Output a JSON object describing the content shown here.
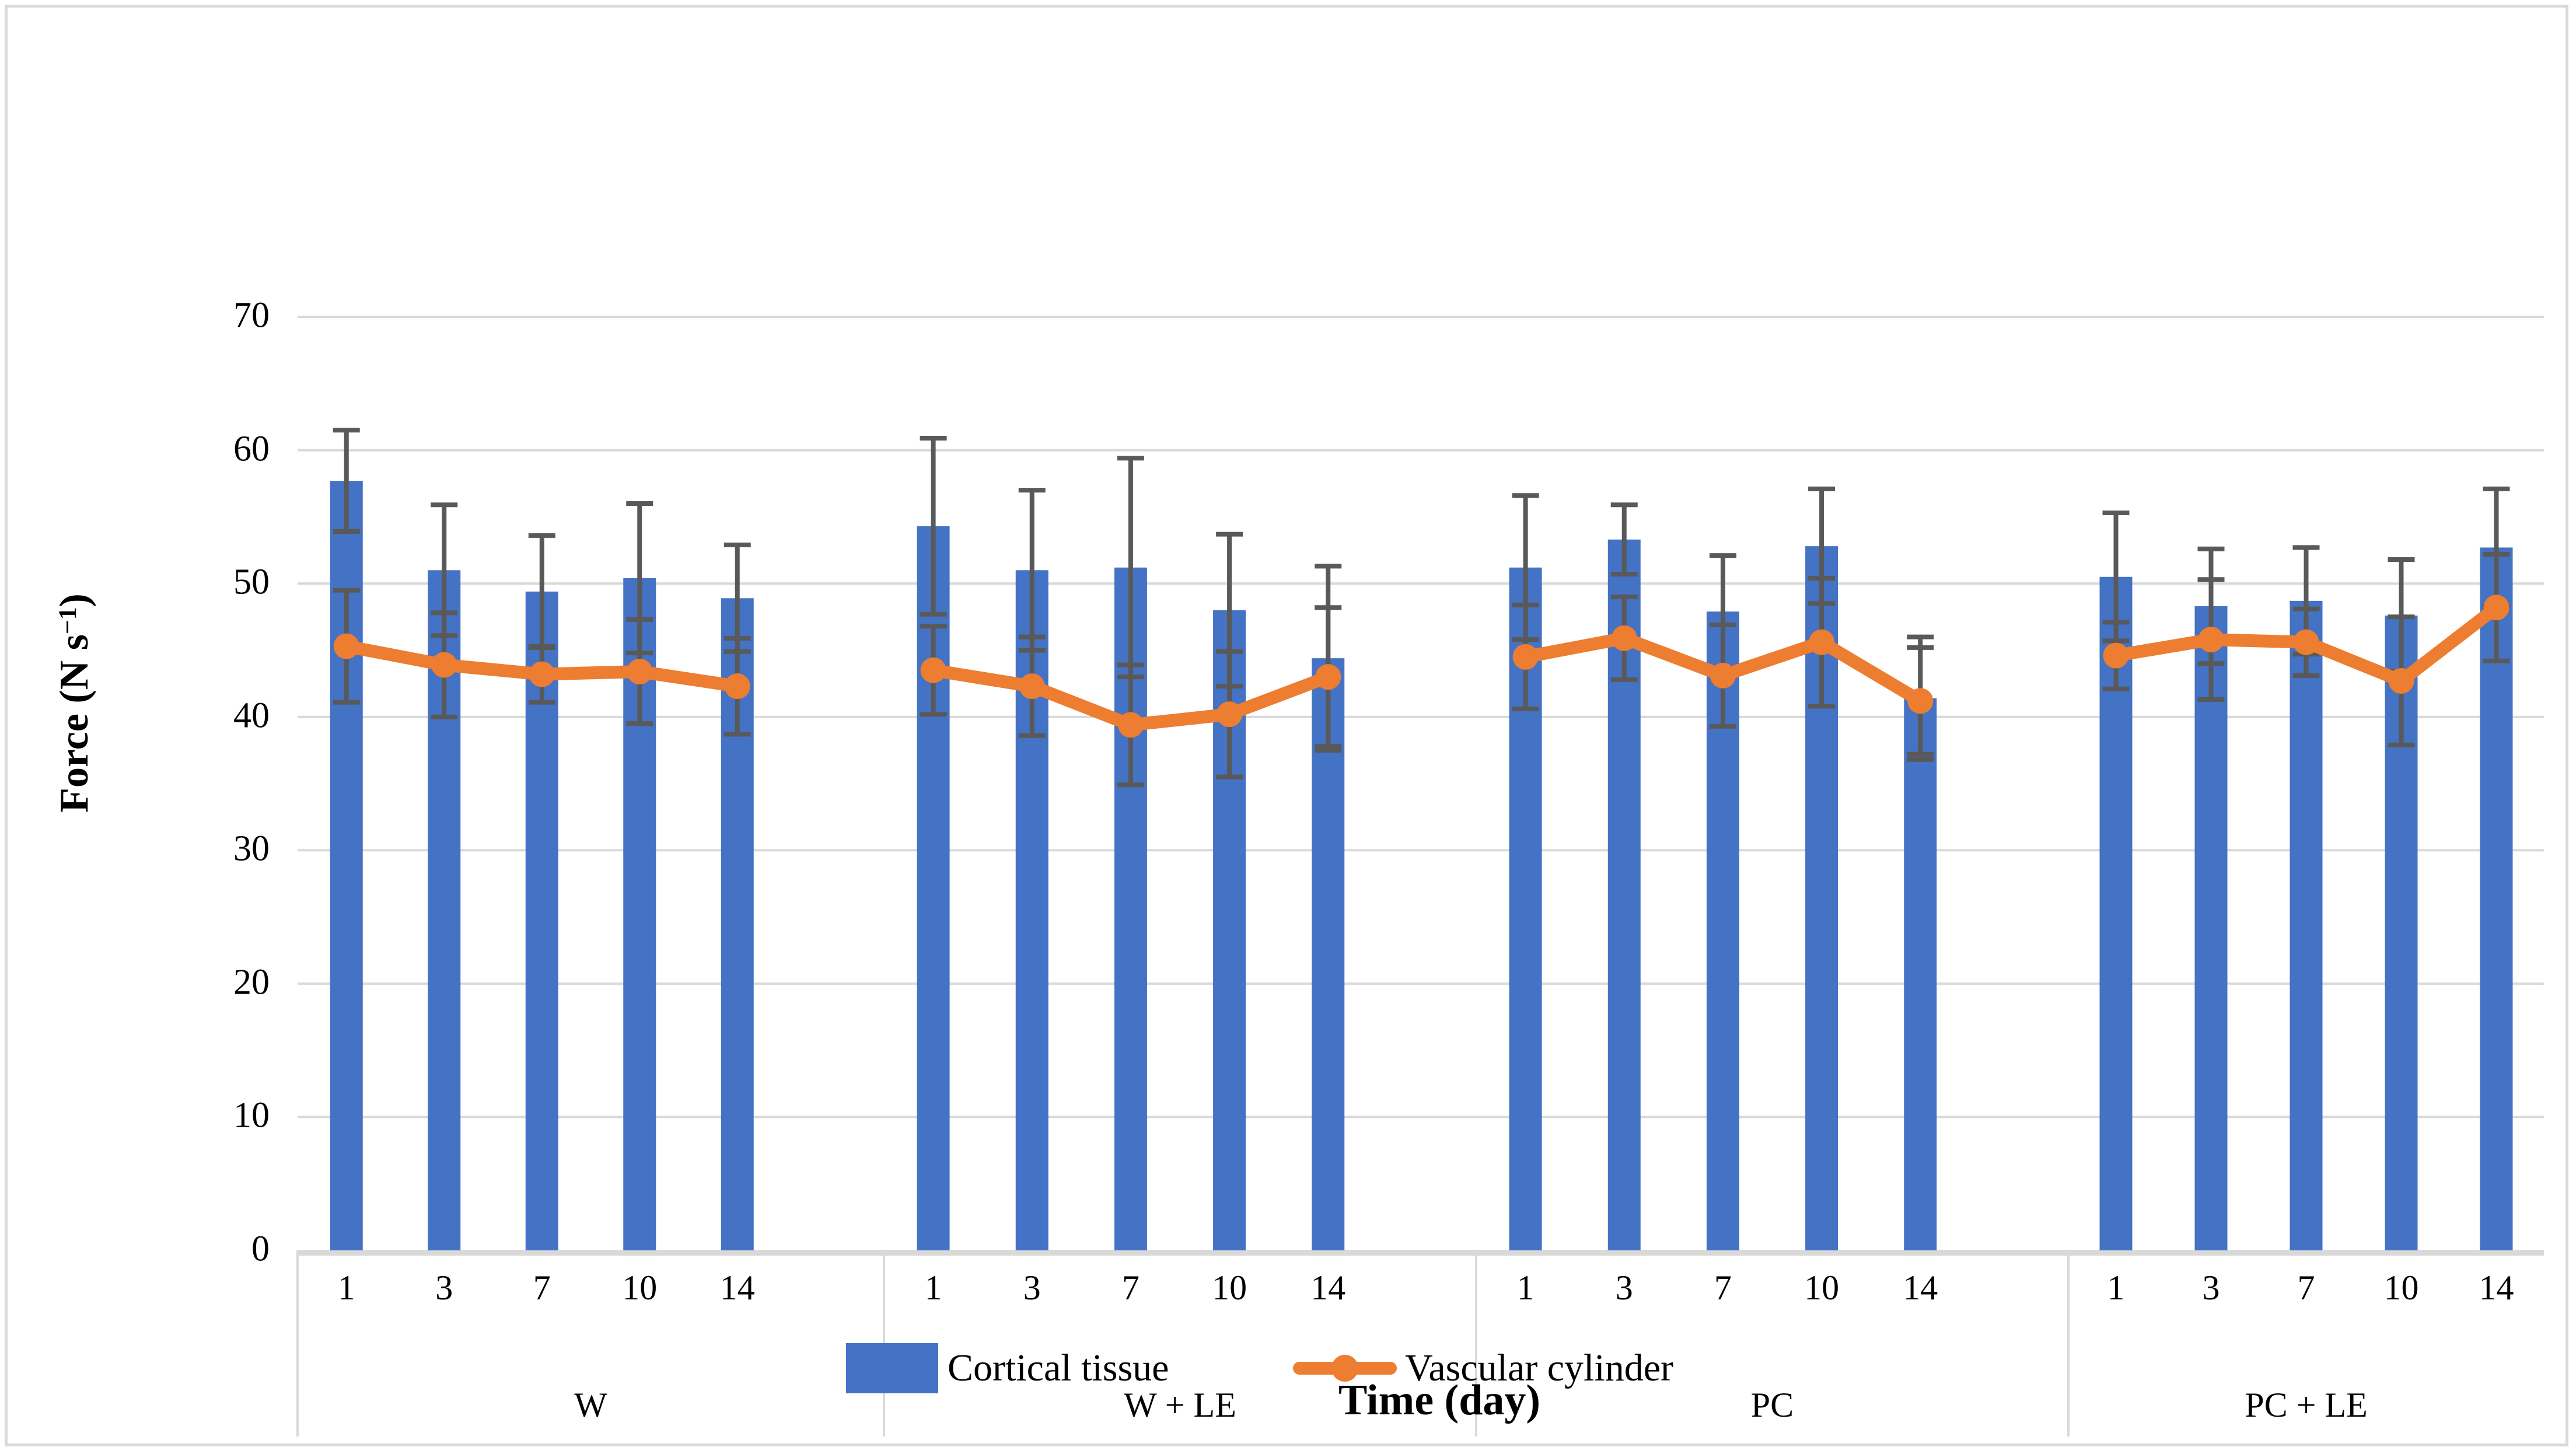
{
  "figure": {
    "background": "#ffffff",
    "border_color": "#d9d9d9"
  },
  "y_axis": {
    "title_prefix": "Force (N s",
    "title_sup": "−1",
    "title_suffix": ")",
    "tick_labels": [
      "0",
      "10",
      "20",
      "30",
      "40",
      "50",
      "60",
      "70"
    ]
  },
  "x_axis": {
    "title": "Time (day)"
  },
  "legend": {
    "items": [
      {
        "label": "Cortical tissue",
        "marker": "bar-swatch",
        "color": "#4472c4"
      },
      {
        "label": "Vascular cylinder",
        "marker": "line-circle",
        "color": "#ed7d31"
      }
    ]
  },
  "chart_data": {
    "type": "bar+line",
    "title": "",
    "xlabel": "Time (day)",
    "ylabel": "Force (N s−1)",
    "ylim": [
      0,
      70
    ],
    "yticks": [
      0,
      10,
      20,
      30,
      40,
      50,
      60,
      70
    ],
    "grid": true,
    "legend_position": "bottom",
    "grid_color": "#d9d9d9",
    "error_bar_color": "#595959",
    "categories_note": "days within each treatment group",
    "days": [
      "1",
      "3",
      "7",
      "10",
      "14"
    ],
    "series_meta": [
      {
        "name": "Cortical tissue",
        "type": "bar",
        "color": "#4472c4"
      },
      {
        "name": "Vascular cylinder",
        "type": "line",
        "color": "#ed7d31"
      }
    ],
    "groups": [
      {
        "label": "W",
        "bar_values": [
          57.7,
          51.0,
          49.4,
          50.4,
          48.9
        ],
        "bar_errors": [
          3.8,
          4.9,
          4.2,
          5.6,
          4.0
        ],
        "line_values": [
          45.3,
          43.9,
          43.2,
          43.4,
          42.3
        ],
        "line_errors": [
          4.2,
          3.9,
          2.1,
          3.9,
          3.6
        ]
      },
      {
        "label": "W + LE",
        "bar_values": [
          54.3,
          51.0,
          51.2,
          48.0,
          44.4
        ],
        "bar_errors": [
          6.6,
          6.0,
          8.2,
          5.7,
          6.9
        ],
        "line_values": [
          43.5,
          42.3,
          39.4,
          40.2,
          43.0
        ],
        "line_errors": [
          3.3,
          3.7,
          4.5,
          4.7,
          5.2
        ]
      },
      {
        "label": "PC",
        "bar_values": [
          51.2,
          53.3,
          47.9,
          52.8,
          41.4
        ],
        "bar_errors": [
          5.4,
          2.6,
          4.2,
          4.3,
          4.6
        ],
        "line_values": [
          44.5,
          45.9,
          43.1,
          45.6,
          41.2
        ],
        "line_errors": [
          3.9,
          3.1,
          3.8,
          4.8,
          4.0
        ]
      },
      {
        "label": "PC + LE",
        "bar_values": [
          50.5,
          48.3,
          48.7,
          47.6,
          52.7
        ],
        "bar_errors": [
          4.8,
          4.3,
          4.0,
          4.2,
          4.4
        ],
        "line_values": [
          44.6,
          45.8,
          45.6,
          42.7,
          48.2
        ],
        "line_errors": [
          2.5,
          4.5,
          2.5,
          4.8,
          4.0
        ]
      }
    ]
  }
}
